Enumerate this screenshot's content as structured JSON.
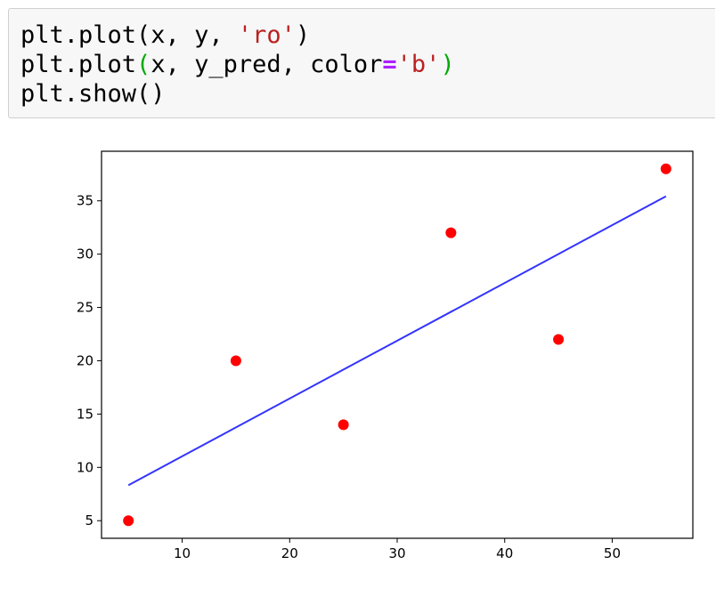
{
  "code_cell": {
    "lines": [
      [
        {
          "text": "plt.plot(x, y, ",
          "cls": ""
        },
        {
          "text": "'ro'",
          "cls": "tok-str"
        },
        {
          "text": ")",
          "cls": ""
        }
      ],
      [
        {
          "text": "plt.plot",
          "cls": ""
        },
        {
          "text": "(",
          "cls": "tok-paren-hl"
        },
        {
          "text": "x, y_pred, color",
          "cls": ""
        },
        {
          "text": "=",
          "cls": "tok-op"
        },
        {
          "text": "'b'",
          "cls": "tok-str"
        },
        {
          "text": ")",
          "cls": "tok-paren-hl"
        }
      ],
      [
        {
          "text": "plt.show()",
          "cls": ""
        }
      ]
    ]
  },
  "chart_data": {
    "type": "scatter",
    "title": "",
    "xlabel": "",
    "ylabel": "",
    "xlim": [
      2.5,
      57.5
    ],
    "ylim": [
      3.35,
      39.65
    ],
    "xticks": [
      10,
      20,
      30,
      40,
      50
    ],
    "yticks": [
      5,
      10,
      15,
      20,
      25,
      30,
      35
    ],
    "grid": false,
    "legend": "none",
    "series": [
      {
        "kind": "points",
        "color": "#ff0000",
        "x": [
          5,
          15,
          25,
          35,
          45,
          55
        ],
        "y": [
          5,
          20,
          14,
          32,
          22,
          38
        ]
      },
      {
        "kind": "line",
        "color": "#0000ff",
        "x": [
          5,
          55
        ],
        "y": [
          8.33,
          35.43
        ]
      }
    ]
  }
}
